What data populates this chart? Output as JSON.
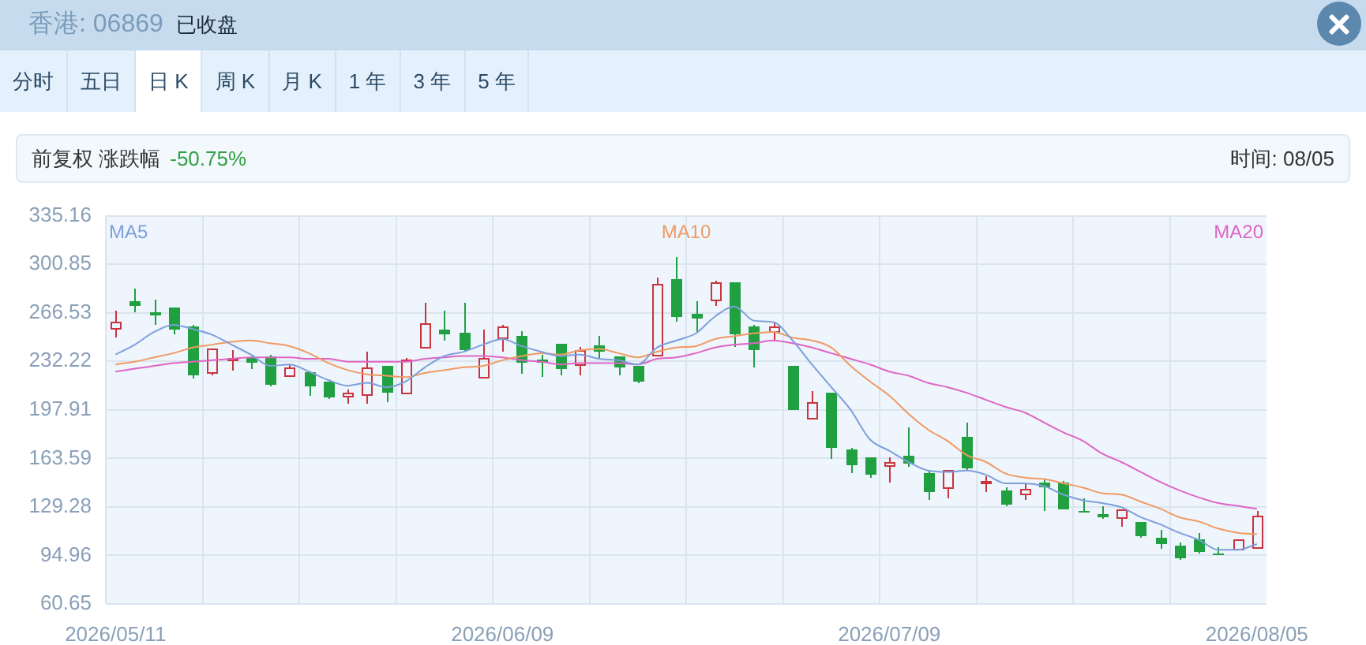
{
  "chart_data": {
    "type": "candlestick",
    "subtitle": "香港: 06869",
    "annotations": [
      "已收盘",
      "分时",
      "五日",
      "日 K",
      "周 K",
      "月 K",
      "1 年",
      "3 年",
      "5 年",
      "前复权 涨跌幅",
      "-50.75%",
      "时间: 08/05"
    ],
    "categories": [
      "2026/05/11",
      null,
      null,
      null,
      null,
      null,
      null,
      null,
      null,
      null,
      null,
      null,
      null,
      null,
      null,
      null,
      null,
      null,
      null,
      null,
      "2026/06/09",
      null,
      null,
      null,
      null,
      null,
      null,
      null,
      null,
      null,
      null,
      null,
      null,
      null,
      null,
      null,
      null,
      null,
      null,
      null,
      "2026/07/09",
      null,
      null,
      null,
      null,
      null,
      null,
      null,
      null,
      null,
      null,
      null,
      null,
      null,
      null,
      null,
      null,
      null,
      null,
      "2026/08/05"
    ],
    "ohlc": [
      [
        255.7,
        268.3,
        249.1,
        260.2
      ],
      [
        274.6,
        283.4,
        266.4,
        271.6
      ],
      [
        266.8,
        275.7,
        257.6,
        264.9
      ],
      [
        270.1,
        270.8,
        251.7,
        254.6
      ],
      [
        257.2,
        257.9,
        220.6,
        222.5
      ],
      [
        224.7,
        241.8,
        222.5,
        241.3
      ],
      [
        233.9,
        239.8,
        225.8,
        235.0
      ],
      [
        235.0,
        236.1,
        226.5,
        231.0
      ],
      [
        236.1,
        236.9,
        214.7,
        215.4
      ],
      [
        222.1,
        230.2,
        221.0,
        228.0
      ],
      [
        225.1,
        225.1,
        207.3,
        214.3
      ],
      [
        217.7,
        217.7,
        205.5,
        206.6
      ],
      [
        207.3,
        211.8,
        201.8,
        210.3
      ],
      [
        209.5,
        239.5,
        202.5,
        228.0
      ],
      [
        228.8,
        228.8,
        203.6,
        210.3
      ],
      [
        210.6,
        234.7,
        210.3,
        233.2
      ],
      [
        242.4,
        273.8,
        242.4,
        259.0
      ],
      [
        254.2,
        267.5,
        247.2,
        250.9
      ],
      [
        252.8,
        273.5,
        239.1,
        239.8
      ],
      [
        221.4,
        254.6,
        221.0,
        234.7
      ],
      [
        249.1,
        258.3,
        238.7,
        257.2
      ],
      [
        250.2,
        253.5,
        223.9,
        231.3
      ],
      [
        233.6,
        237.2,
        221.4,
        231.3
      ],
      [
        244.6,
        244.6,
        222.5,
        226.5
      ],
      [
        230.2,
        242.8,
        222.5,
        239.8
      ],
      [
        243.2,
        250.2,
        235.0,
        239.1
      ],
      [
        236.1,
        236.1,
        222.1,
        228.0
      ],
      [
        228.8,
        229.5,
        216.9,
        217.7
      ],
      [
        236.9,
        291.6,
        236.1,
        287.1
      ],
      [
        290.8,
        306.3,
        260.2,
        263.8
      ],
      [
        265.3,
        274.2,
        252.4,
        262.0
      ],
      [
        275.7,
        289.0,
        271.2,
        288.6
      ],
      [
        288.6,
        288.6,
        242.4,
        250.9
      ],
      [
        256.8,
        258.3,
        228.0,
        239.8
      ],
      [
        253.9,
        259.8,
        246.5,
        257.2
      ],
      [
        229.5,
        229.5,
        198.1,
        198.1
      ],
      [
        191.8,
        211.4,
        190.7,
        202.9
      ],
      [
        210.3,
        210.3,
        163.6,
        171.5
      ],
      [
        169.6,
        171.5,
        153.0,
        158.5
      ],
      [
        164.1,
        164.1,
        149.3,
        152.3
      ],
      [
        158.5,
        164.8,
        146.7,
        161.1
      ],
      [
        165.9,
        185.2,
        157.8,
        160.4
      ],
      [
        153.0,
        154.1,
        134.5,
        140.1
      ],
      [
        142.7,
        154.9,
        135.6,
        154.9
      ],
      [
        178.5,
        188.8,
        154.9,
        156.3
      ],
      [
        146.4,
        151.2,
        139.3,
        147.5
      ],
      [
        140.8,
        143.0,
        129.7,
        131.2
      ],
      [
        138.9,
        145.6,
        134.5,
        141.9
      ],
      [
        146.4,
        148.2,
        126.4,
        143.0
      ],
      [
        146.4,
        147.5,
        127.9,
        127.9
      ],
      [
        126.8,
        135.6,
        125.3,
        125.3
      ],
      [
        124.2,
        130.1,
        121.2,
        121.6
      ],
      [
        122.0,
        127.1,
        115.3,
        127.1
      ],
      [
        118.6,
        119.0,
        107.5,
        108.6
      ],
      [
        107.9,
        113.1,
        100.2,
        103.1
      ],
      [
        102.0,
        104.6,
        92.0,
        92.8
      ],
      [
        106.8,
        110.5,
        96.5,
        97.2
      ],
      [
        96.5,
        100.9,
        95.0,
        95.0
      ],
      [
        100.2,
        106.8,
        100.2,
        106.1
      ],
      [
        101.3,
        126.4,
        100.2,
        122.7
      ]
    ],
    "colors": [
      "#c9343f",
      "#20a040",
      "#20a040",
      "#20a040",
      "#20a040",
      "#c9343f",
      "#c9343f",
      "#20a040",
      "#20a040",
      "#c9343f",
      "#20a040",
      "#20a040",
      "#c9343f",
      "#c9343f",
      "#20a040",
      "#c9343f",
      "#c9343f",
      "#20a040",
      "#20a040",
      "#c9343f",
      "#c9343f",
      "#20a040",
      "#20a040",
      "#20a040",
      "#c9343f",
      "#20a040",
      "#20a040",
      "#20a040",
      "#c9343f",
      "#20a040",
      "#20a040",
      "#c9343f",
      "#20a040",
      "#20a040",
      "#c9343f",
      "#20a040",
      "#c9343f",
      "#20a040",
      "#20a040",
      "#20a040",
      "#c9343f",
      "#20a040",
      "#20a040",
      "#c9343f",
      "#20a040",
      "#c9343f",
      "#20a040",
      "#c9343f",
      "#20a040",
      "#20a040",
      "#20a040",
      "#20a040",
      "#c9343f",
      "#20a040",
      "#20a040",
      "#20a040",
      "#20a040",
      "#20a040",
      "#c9343f",
      "#c9343f"
    ],
    "series": [
      {
        "type": "line",
        "name": "MA5",
        "color": "#7e9fdc",
        "values": [
          237,
          244,
          253,
          258,
          255,
          251,
          244,
          237,
          229,
          230,
          225,
          219,
          215,
          217,
          214,
          218,
          228,
          236,
          239,
          244,
          248,
          243,
          239,
          236,
          237,
          234,
          233,
          230,
          242,
          247,
          252,
          264,
          271,
          261,
          260,
          247,
          230,
          214,
          198,
          177,
          169,
          161,
          155,
          154,
          155,
          152,
          146,
          146,
          144,
          138,
          134,
          132,
          129,
          122,
          117,
          111,
          106,
          99,
          99,
          103
        ]
      },
      {
        "type": "line",
        "name": "MA10",
        "color": "#f09a62",
        "values": [
          230,
          232,
          235,
          238,
          242,
          244,
          246,
          247,
          245,
          243,
          238,
          231,
          226,
          223,
          222,
          221,
          224,
          226,
          228,
          229,
          233,
          236,
          238,
          237,
          240,
          241,
          238,
          235,
          239,
          242,
          243,
          248,
          250,
          252,
          253,
          249,
          247,
          242,
          229,
          218,
          208,
          195,
          184,
          176,
          166,
          161,
          153,
          150,
          149,
          146,
          143,
          139,
          138,
          133,
          128,
          122,
          119,
          114,
          111,
          110
        ]
      },
      {
        "type": "line",
        "name": "MA20",
        "color": "#e064c4",
        "values": [
          225,
          227,
          229,
          231,
          232,
          233,
          234,
          235,
          235,
          235,
          234,
          234,
          232,
          232,
          232,
          232,
          234,
          235,
          236,
          236,
          235,
          233,
          232,
          230,
          231,
          231,
          231,
          230,
          234,
          235,
          238,
          242,
          244,
          245,
          247,
          245,
          242,
          238,
          234,
          230,
          225,
          222,
          217,
          214,
          210,
          205,
          200,
          196,
          189,
          182,
          176,
          167,
          161,
          154,
          147,
          141,
          136,
          132,
          130,
          128
        ]
      }
    ],
    "ylim": [
      60.65,
      335.16
    ],
    "yticks": [
      60.65,
      94.96,
      129.28,
      163.59,
      197.91,
      232.22,
      266.53,
      300.85,
      335.16
    ],
    "grid": true,
    "legend": "top",
    "marker": "none"
  }
}
